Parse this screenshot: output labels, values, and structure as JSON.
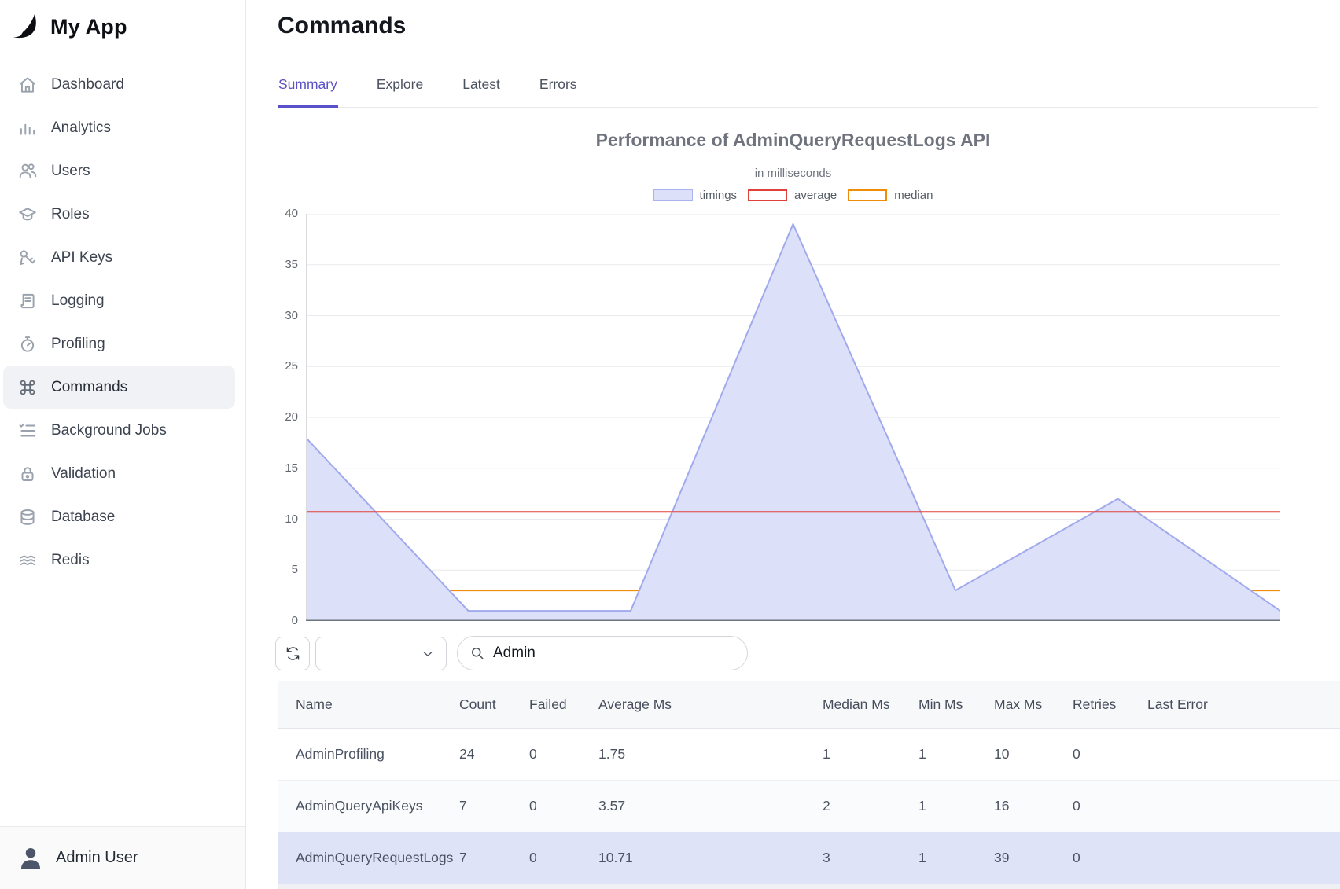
{
  "app": {
    "name": "My App"
  },
  "sidebar": {
    "items": [
      {
        "label": "Dashboard",
        "icon": "home"
      },
      {
        "label": "Analytics",
        "icon": "bar-chart"
      },
      {
        "label": "Users",
        "icon": "users"
      },
      {
        "label": "Roles",
        "icon": "graduation-cap"
      },
      {
        "label": "API Keys",
        "icon": "key"
      },
      {
        "label": "Logging",
        "icon": "document"
      },
      {
        "label": "Profiling",
        "icon": "stopwatch"
      },
      {
        "label": "Commands",
        "icon": "command"
      },
      {
        "label": "Background Jobs",
        "icon": "checklist"
      },
      {
        "label": "Validation",
        "icon": "lock"
      },
      {
        "label": "Database",
        "icon": "database"
      },
      {
        "label": "Redis",
        "icon": "layers"
      }
    ],
    "active_index": 7,
    "user": {
      "name": "Admin User"
    }
  },
  "header": {
    "title": "Commands"
  },
  "tabs": [
    {
      "label": "Summary",
      "active": true
    },
    {
      "label": "Explore",
      "active": false
    },
    {
      "label": "Latest",
      "active": false
    },
    {
      "label": "Errors",
      "active": false
    }
  ],
  "chart_data": {
    "type": "area",
    "title": "Performance of AdminQueryRequestLogs API",
    "subtitle": "in milliseconds",
    "x": [
      0,
      1,
      2,
      3,
      4,
      5,
      6
    ],
    "series": [
      {
        "name": "timings",
        "values": [
          18,
          1,
          1,
          39,
          3,
          12,
          1
        ]
      }
    ],
    "average": 10.71,
    "median": 3,
    "ylim": [
      0,
      40
    ],
    "ytick_step": 5,
    "grid": true,
    "legend_position": "top",
    "legend": [
      {
        "label": "timings",
        "swatch": "fill"
      },
      {
        "label": "average",
        "swatch": "avg"
      },
      {
        "label": "median",
        "swatch": "med"
      }
    ],
    "colors": {
      "fill": "#dce1f9",
      "stroke": "#a0aaec",
      "average": "#e0413b",
      "median": "#ef8d08",
      "grid": "#e9eaed",
      "axis_bottom": "#6e747d",
      "axis_left": "#d9dbdf"
    }
  },
  "controls": {
    "refresh_label": "refresh",
    "filter_select": {
      "value": ""
    },
    "search": {
      "value": "Admin"
    }
  },
  "table": {
    "columns": [
      "Name",
      "Count",
      "Failed",
      "Average Ms",
      "Median Ms",
      "Min Ms",
      "Max Ms",
      "Retries",
      "Last Error"
    ],
    "rows": [
      {
        "cells": [
          "AdminProfiling",
          24,
          0,
          1.75,
          1,
          1,
          10,
          0,
          ""
        ],
        "highlight": false
      },
      {
        "cells": [
          "AdminQueryApiKeys",
          7,
          0,
          3.57,
          2,
          1,
          16,
          0,
          ""
        ],
        "highlight": false
      },
      {
        "cells": [
          "AdminQueryRequestLogs",
          7,
          0,
          10.71,
          3,
          1,
          39,
          0,
          ""
        ],
        "highlight": true
      }
    ]
  }
}
